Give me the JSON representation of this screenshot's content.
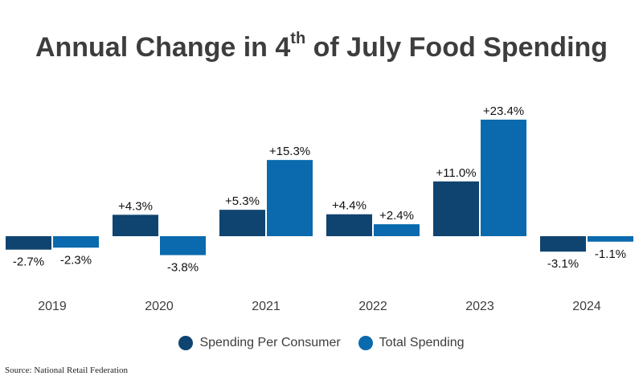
{
  "title": {
    "prefix": "Annual Change in 4",
    "superscript": "th",
    "suffix": " of July Food Spending"
  },
  "colors": {
    "per_consumer": "#0f4470",
    "total": "#0a6aad",
    "text": "#3d3d3d"
  },
  "chart_data": {
    "type": "bar",
    "title": "Annual Change in 4th of July Food Spending",
    "categories": [
      "2019",
      "2020",
      "2021",
      "2022",
      "2023",
      "2024"
    ],
    "series": [
      {
        "name": "Spending Per Consumer",
        "values": [
          -2.7,
          4.3,
          5.3,
          4.4,
          11.0,
          -3.1
        ],
        "labels": [
          "-2.7%",
          "+4.3%",
          "+5.3%",
          "+4.4%",
          "+11.0%",
          "-3.1%"
        ]
      },
      {
        "name": "Total Spending",
        "values": [
          -2.3,
          -3.8,
          15.3,
          2.4,
          23.4,
          -1.1
        ],
        "labels": [
          "-2.3%",
          "-3.8%",
          "+15.3%",
          "+2.4%",
          "+23.4%",
          "-1.1%"
        ]
      }
    ],
    "xlabel": "",
    "ylabel": "",
    "unit": "%",
    "grid": false,
    "legend": "bottom-center"
  },
  "legend": {
    "per_consumer": "Spending Per Consumer",
    "total": "Total Spending"
  },
  "source": "Source: National Retail Federation"
}
